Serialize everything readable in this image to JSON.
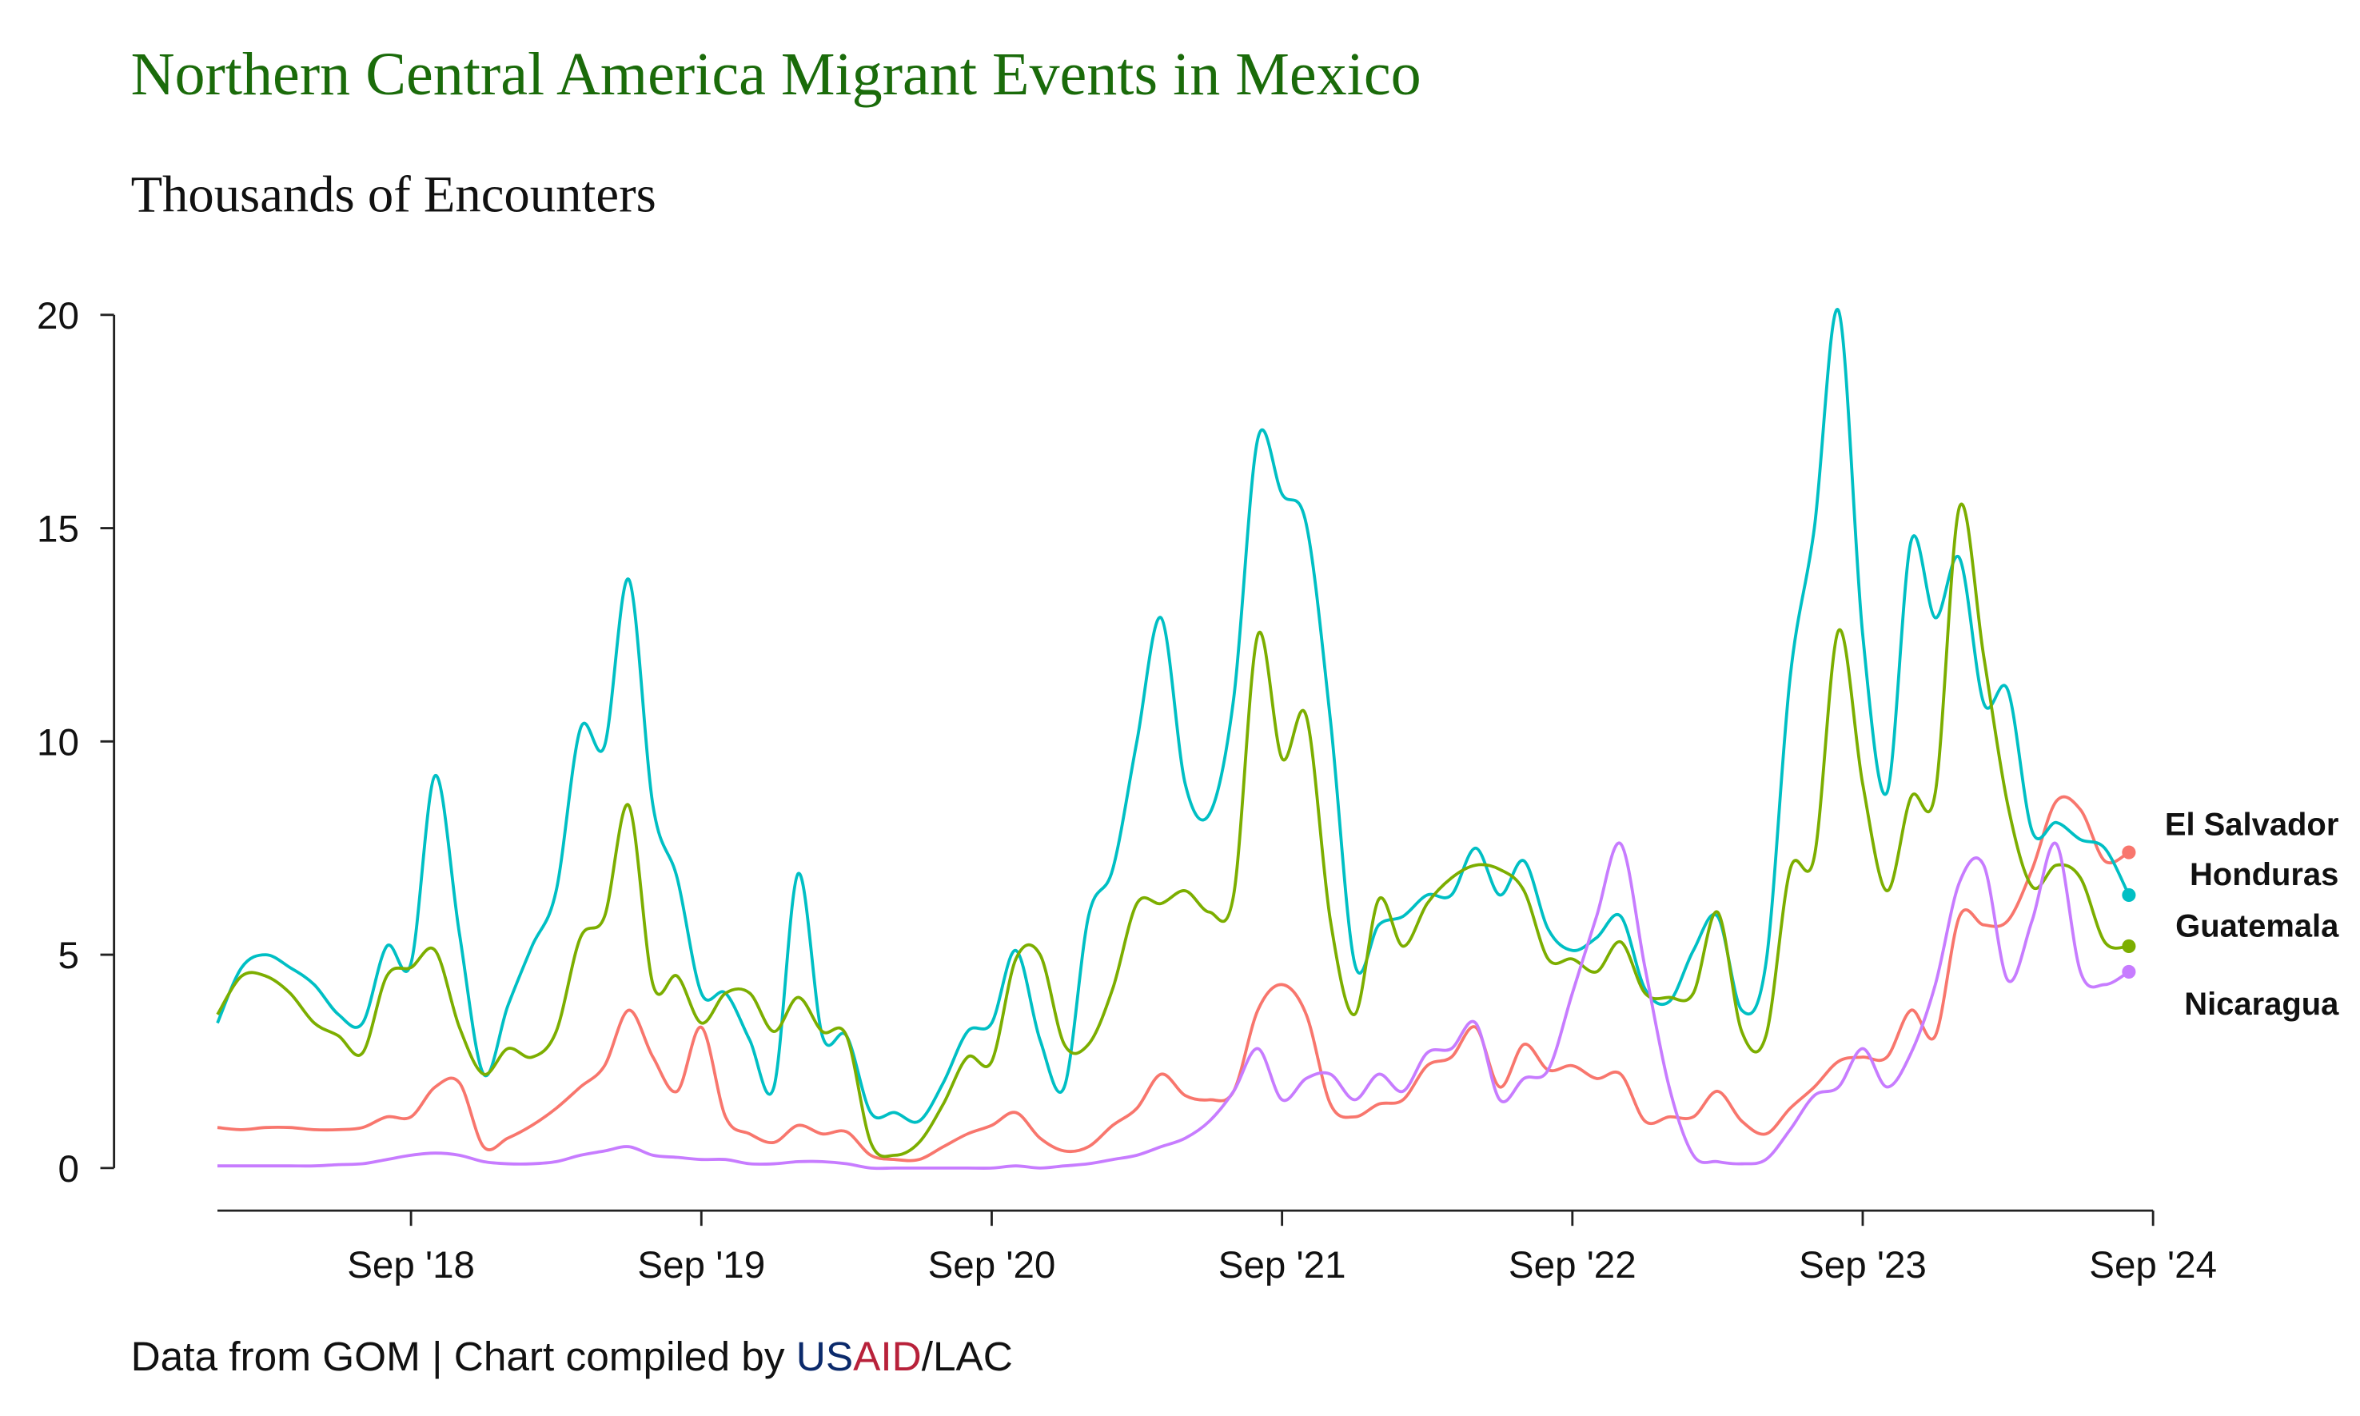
{
  "chart_data": {
    "type": "line",
    "title": "Northern Central America Migrant Events in Mexico",
    "subtitle": "Thousands of Encounters",
    "caption": [
      "Data from GOM | Chart compiled by ",
      "US",
      "AID",
      "/LAC"
    ],
    "caption_colors": [
      "#111111",
      "#0b2a6b",
      "#b8213a",
      "#111111"
    ],
    "x": [
      "2018-01",
      "2018-02",
      "2018-03",
      "2018-04",
      "2018-05",
      "2018-06",
      "2018-07",
      "2018-08",
      "2018-09",
      "2018-10",
      "2018-11",
      "2018-12",
      "2019-01",
      "2019-02",
      "2019-03",
      "2019-04",
      "2019-05",
      "2019-06",
      "2019-07",
      "2019-08",
      "2019-09",
      "2019-10",
      "2019-11",
      "2019-12",
      "2020-01",
      "2020-02",
      "2020-03",
      "2020-04",
      "2020-05",
      "2020-06",
      "2020-07",
      "2020-08",
      "2020-09",
      "2020-10",
      "2020-11",
      "2020-12",
      "2021-01",
      "2021-02",
      "2021-03",
      "2021-04",
      "2021-05",
      "2021-06",
      "2021-07",
      "2021-08",
      "2021-09",
      "2021-10",
      "2021-11",
      "2021-12",
      "2022-01",
      "2022-02",
      "2022-03",
      "2022-04",
      "2022-05",
      "2022-06",
      "2022-07",
      "2022-08",
      "2022-09",
      "2022-10",
      "2022-11",
      "2022-12",
      "2023-01",
      "2023-02",
      "2023-03",
      "2023-04",
      "2023-05",
      "2023-06",
      "2023-07",
      "2023-08",
      "2023-09",
      "2023-10",
      "2023-11",
      "2023-12",
      "2024-01",
      "2024-02",
      "2024-03",
      "2024-04",
      "2024-05",
      "2024-06",
      "2024-07",
      "2024-08"
    ],
    "series": [
      {
        "name": "El Salvador",
        "color": "#F8766D",
        "values": [
          0.95,
          0.9,
          0.95,
          0.95,
          0.9,
          0.9,
          0.95,
          1.2,
          1.2,
          1.9,
          2.0,
          0.5,
          0.7,
          1.0,
          1.4,
          1.9,
          2.4,
          3.7,
          2.6,
          1.8,
          3.3,
          1.2,
          0.8,
          0.6,
          1.0,
          0.8,
          0.85,
          0.3,
          0.2,
          0.2,
          0.5,
          0.8,
          1.0,
          1.3,
          0.7,
          0.4,
          0.5,
          1.0,
          1.4,
          2.2,
          1.7,
          1.6,
          1.8,
          3.7,
          4.3,
          3.6,
          1.5,
          1.2,
          1.5,
          1.6,
          2.4,
          2.6,
          3.3,
          1.9,
          2.9,
          2.3,
          2.4,
          2.1,
          2.2,
          1.1,
          1.2,
          1.2,
          1.8,
          1.1,
          0.8,
          1.4,
          1.9,
          2.5,
          2.6,
          2.6,
          3.7,
          3.1,
          5.9,
          5.7,
          5.8,
          7.0,
          8.6,
          8.4,
          7.2,
          7.4
        ]
      },
      {
        "name": "Honduras",
        "color": "#00BFC4",
        "values": [
          3.4,
          4.7,
          5.0,
          4.7,
          4.3,
          3.6,
          3.4,
          5.2,
          4.8,
          9.2,
          5.5,
          2.2,
          3.8,
          5.2,
          6.5,
          10.3,
          9.9,
          13.8,
          8.5,
          6.8,
          4.1,
          4.1,
          3.0,
          1.9,
          6.9,
          3.1,
          3.1,
          1.3,
          1.3,
          1.1,
          2.0,
          3.2,
          3.4,
          5.1,
          3.0,
          1.9,
          5.9,
          7.0,
          10.0,
          12.9,
          9.0,
          8.3,
          11.0,
          17.1,
          15.8,
          15.1,
          10.5,
          4.8,
          5.7,
          5.9,
          6.4,
          6.4,
          7.5,
          6.4,
          7.2,
          5.6,
          5.1,
          5.4,
          5.9,
          4.2,
          3.9,
          5.1,
          5.9,
          3.7,
          4.8,
          11.5,
          15.0,
          20.1,
          12.5,
          8.8,
          14.7,
          12.9,
          14.3,
          10.9,
          11.2,
          7.9,
          8.1,
          7.7,
          7.5,
          6.4
        ]
      },
      {
        "name": "Guatemala",
        "color": "#7CAE00",
        "values": [
          3.6,
          4.5,
          4.5,
          4.1,
          3.4,
          3.1,
          2.7,
          4.5,
          4.7,
          5.1,
          3.3,
          2.2,
          2.8,
          2.6,
          3.2,
          5.4,
          5.9,
          8.5,
          4.3,
          4.5,
          3.4,
          4.1,
          4.1,
          3.2,
          4.0,
          3.2,
          3.1,
          0.6,
          0.3,
          0.6,
          1.5,
          2.6,
          2.5,
          4.9,
          5.0,
          2.9,
          2.9,
          4.2,
          6.2,
          6.2,
          6.5,
          6.0,
          6.4,
          12.5,
          9.6,
          10.6,
          5.8,
          3.6,
          6.3,
          5.2,
          6.2,
          6.8,
          7.1,
          7.0,
          6.5,
          4.9,
          4.9,
          4.6,
          5.3,
          4.1,
          4.0,
          4.1,
          6.0,
          3.2,
          3.1,
          7.0,
          7.3,
          12.6,
          9.0,
          6.5,
          8.7,
          8.8,
          15.5,
          12.0,
          8.5,
          6.6,
          7.1,
          6.8,
          5.3,
          5.2
        ]
      },
      {
        "name": "Nicaragua",
        "color": "#C77CFF",
        "values": [
          0.05,
          0.05,
          0.05,
          0.05,
          0.05,
          0.08,
          0.1,
          0.2,
          0.3,
          0.35,
          0.3,
          0.15,
          0.1,
          0.1,
          0.15,
          0.3,
          0.4,
          0.5,
          0.3,
          0.25,
          0.2,
          0.2,
          0.1,
          0.1,
          0.15,
          0.15,
          0.1,
          0.0,
          0.0,
          0.0,
          0.0,
          0.0,
          0.0,
          0.05,
          0.0,
          0.05,
          0.1,
          0.2,
          0.3,
          0.5,
          0.7,
          1.1,
          1.8,
          2.8,
          1.6,
          2.1,
          2.2,
          1.6,
          2.2,
          1.8,
          2.7,
          2.8,
          3.4,
          1.6,
          2.1,
          2.3,
          4.1,
          5.9,
          7.6,
          4.7,
          1.9,
          0.3,
          0.15,
          0.1,
          0.2,
          0.9,
          1.7,
          1.9,
          2.8,
          1.9,
          2.7,
          4.3,
          6.7,
          7.1,
          4.4,
          5.8,
          7.6,
          4.6,
          4.3,
          4.6
        ]
      }
    ],
    "xlim": [
      "2018-01",
      "2024-08"
    ],
    "xticks": [
      {
        "value": "2018-09",
        "label": "Sep '18"
      },
      {
        "value": "2019-09",
        "label": "Sep '19"
      },
      {
        "value": "2020-09",
        "label": "Sep '20"
      },
      {
        "value": "2021-09",
        "label": "Sep '21"
      },
      {
        "value": "2022-09",
        "label": "Sep '22"
      },
      {
        "value": "2023-09",
        "label": "Sep '23"
      },
      {
        "value": "2024-09",
        "label": "Sep '24"
      }
    ],
    "ylim": [
      0,
      20
    ],
    "yticks": [
      0,
      5,
      10,
      15,
      20
    ],
    "grid": false,
    "legend": "end-labels"
  }
}
